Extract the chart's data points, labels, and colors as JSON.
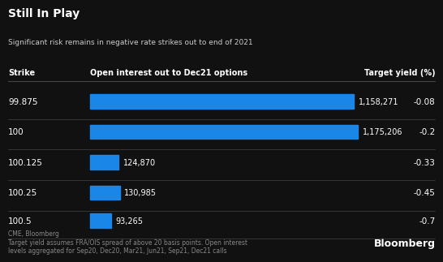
{
  "title": "Still In Play",
  "subtitle": "Significant risk remains in negative rate strikes out to end of 2021",
  "col_strike": "Strike",
  "col_openint": "Open interest out to Dec21 options",
  "col_yield": "Target yield (%)",
  "strikes": [
    "99.875",
    "100",
    "100.125",
    "100.25",
    "100.5"
  ],
  "open_interest": [
    1158271,
    1175206,
    124870,
    130985,
    93265
  ],
  "open_interest_labels": [
    "1,158,271",
    "1,175,206",
    "124,870",
    "130,985",
    "93,265"
  ],
  "target_yields": [
    "-0.08",
    "-0.2",
    "-0.33",
    "-0.45",
    "-0.7"
  ],
  "bar_color": "#1a86e8",
  "bg_color": "#111111",
  "text_color": "#ffffff",
  "header_color": "#cccccc",
  "footnote_color": "#888888",
  "divider_color": "#444444",
  "footnote_line1": "CME, Bloomberg",
  "footnote_line2": "Target yield assumes FRA/OIS spread of above 20 basis points. Open interest",
  "footnote_line3": "levels aggregated for Sep20, Dec20, Mar21, Jun21, Sep21, Dec21 calls",
  "bloomberg_label": "Bloomberg",
  "max_bar_value": 1175206
}
